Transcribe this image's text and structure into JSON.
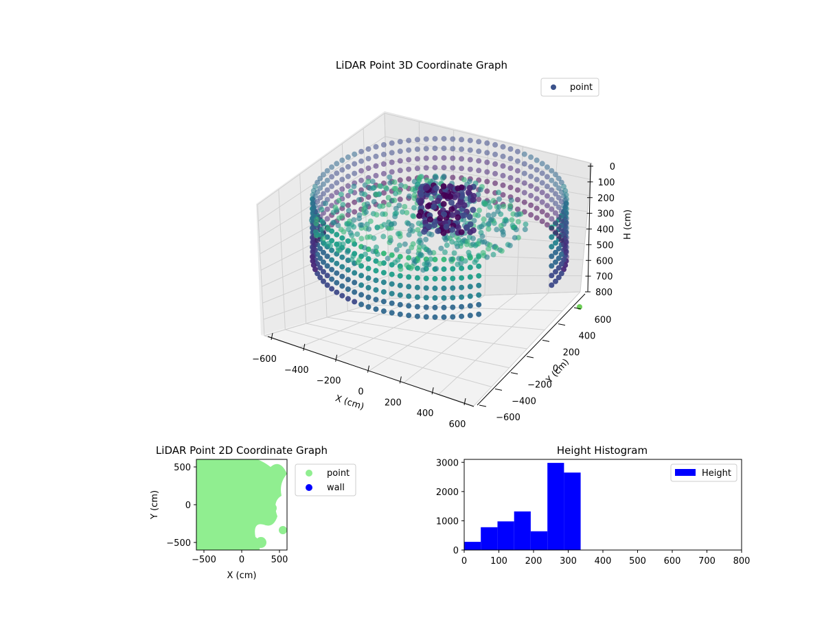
{
  "chart_data": [
    {
      "type": "scatter",
      "title": "LiDAR Point 3D Coordinate Graph",
      "xlabel": "X (cm)",
      "ylabel": "Y (cm)",
      "zlabel": "H (cm)",
      "xlim": [
        -600,
        600
      ],
      "ylim": [
        -600,
        600
      ],
      "zlim": [
        0,
        800
      ],
      "z_inverted": true,
      "x_ticks": [
        "−600",
        "−400",
        "−200",
        "0",
        "200",
        "400",
        "600"
      ],
      "y_ticks": [
        "−600",
        "−400",
        "−200",
        "0",
        "200",
        "400",
        "600"
      ],
      "z_ticks": [
        "0",
        "100",
        "200",
        "300",
        "400",
        "500",
        "600",
        "700",
        "800"
      ],
      "legend": {
        "position": "upper-right",
        "entries": [
          {
            "name": "point",
            "color": "#3b528b"
          }
        ]
      },
      "colormap": "viridis",
      "grid": true
    },
    {
      "type": "scatter",
      "title": "LiDAR Point 2D Coordinate Graph",
      "xlabel": "X (cm)",
      "ylabel": "Y (cm)",
      "xlim": [
        -600,
        600
      ],
      "ylim": [
        -600,
        600
      ],
      "x_ticks": [
        "−500",
        "0",
        "500"
      ],
      "y_ticks": [
        "−500",
        "0",
        "500"
      ],
      "legend": {
        "position": "outside-right",
        "entries": [
          {
            "name": "point",
            "color": "#90ee90"
          },
          {
            "name": "wall",
            "color": "#0000ff"
          }
        ]
      },
      "grid": false
    },
    {
      "type": "bar",
      "title": "Height Histogram",
      "xlabel": "",
      "ylabel": "",
      "xlim": [
        0,
        800
      ],
      "ylim": [
        0,
        3100
      ],
      "x_ticks": [
        "0",
        "100",
        "200",
        "300",
        "400",
        "500",
        "600",
        "700",
        "800"
      ],
      "y_ticks": [
        "0",
        "1000",
        "2000",
        "3000"
      ],
      "bin_edges": [
        0,
        48,
        96,
        144,
        192,
        240,
        288,
        336
      ],
      "values": [
        280,
        780,
        980,
        1320,
        640,
        2980,
        2650
      ],
      "color": "#0000ff",
      "legend": {
        "position": "upper-right",
        "entries": [
          {
            "name": "Height",
            "color": "#0000ff"
          }
        ]
      },
      "grid": false
    }
  ]
}
